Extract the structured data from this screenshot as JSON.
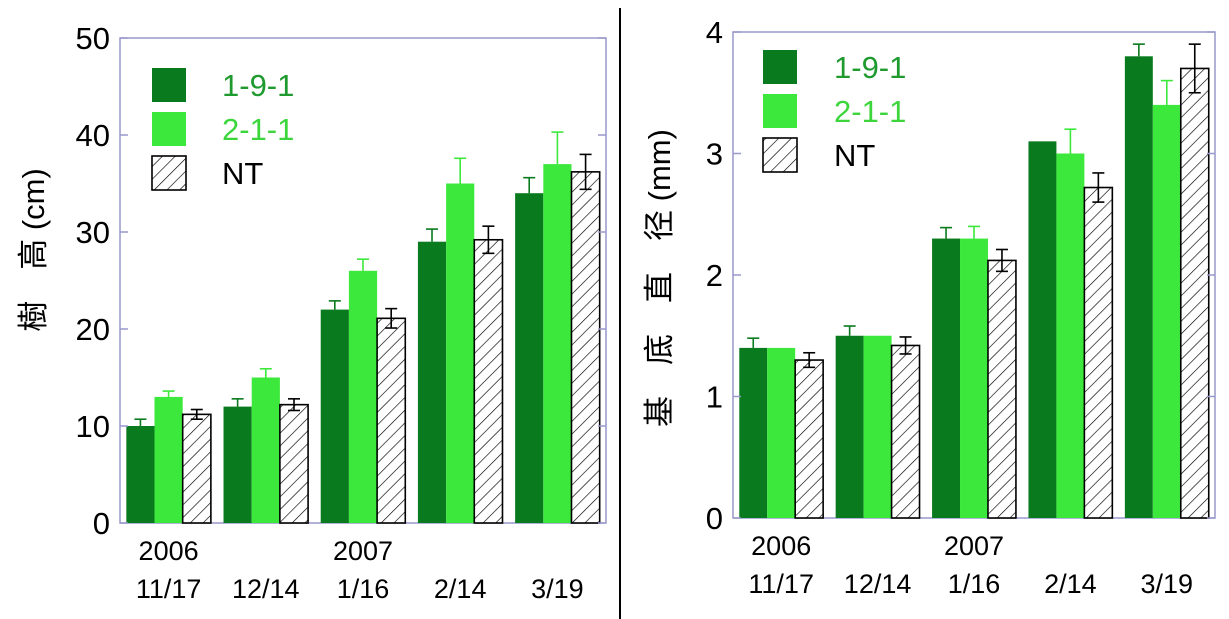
{
  "chart_data": [
    {
      "type": "bar",
      "ylabel": "樹　高 (cm)",
      "ylim": [
        0,
        50
      ],
      "yticks": [
        0,
        10,
        20,
        30,
        40,
        50
      ],
      "categories": [
        "11/17",
        "12/14",
        "1/16",
        "2/14",
        "3/19"
      ],
      "year_labels": [
        "2006",
        "",
        "2007",
        "",
        ""
      ],
      "legend_placement": "top-left",
      "grid": false,
      "series": [
        {
          "name": "1-9-1",
          "values": [
            10,
            12,
            22,
            29,
            34
          ],
          "errors": [
            0.7,
            0.8,
            0.9,
            1.3,
            1.6
          ],
          "fill": "#0a7a1e",
          "label_color": "#1f9a2e"
        },
        {
          "name": "2-1-1",
          "values": [
            13,
            15,
            26,
            35,
            37
          ],
          "errors": [
            0.6,
            0.9,
            1.2,
            2.6,
            3.3
          ],
          "fill": "#3de83d",
          "label_color": "#3cd63c"
        },
        {
          "name": "NT",
          "values": [
            11.2,
            12.2,
            21.1,
            29.2,
            36.2
          ],
          "errors": [
            0.5,
            0.6,
            1.0,
            1.4,
            1.8
          ],
          "fill": "hatch",
          "label_color": "#000000"
        }
      ]
    },
    {
      "type": "bar",
      "ylabel": "基　底　直　径 (mm)",
      "ylim": [
        0,
        4
      ],
      "yticks": [
        0,
        1,
        2,
        3,
        4
      ],
      "categories": [
        "11/17",
        "12/14",
        "1/16",
        "2/14",
        "3/19"
      ],
      "year_labels": [
        "2006",
        "",
        "2007",
        "",
        ""
      ],
      "legend_placement": "top-left",
      "grid": false,
      "series": [
        {
          "name": "1-9-1",
          "values": [
            1.4,
            1.5,
            2.3,
            3.1,
            3.8
          ],
          "errors": [
            0.08,
            0.08,
            0.09,
            0.0,
            0.1
          ],
          "fill": "#0a7a1e",
          "label_color": "#1f9a2e"
        },
        {
          "name": "2-1-1",
          "values": [
            1.4,
            1.5,
            2.3,
            3.0,
            3.4
          ],
          "errors": [
            0.0,
            0.0,
            0.1,
            0.2,
            0.2
          ],
          "fill": "#3de83d",
          "label_color": "#3cd63c"
        },
        {
          "name": "NT",
          "values": [
            1.3,
            1.42,
            2.12,
            2.72,
            3.7
          ],
          "errors": [
            0.06,
            0.07,
            0.09,
            0.12,
            0.2
          ],
          "fill": "hatch",
          "label_color": "#000000"
        }
      ]
    }
  ]
}
